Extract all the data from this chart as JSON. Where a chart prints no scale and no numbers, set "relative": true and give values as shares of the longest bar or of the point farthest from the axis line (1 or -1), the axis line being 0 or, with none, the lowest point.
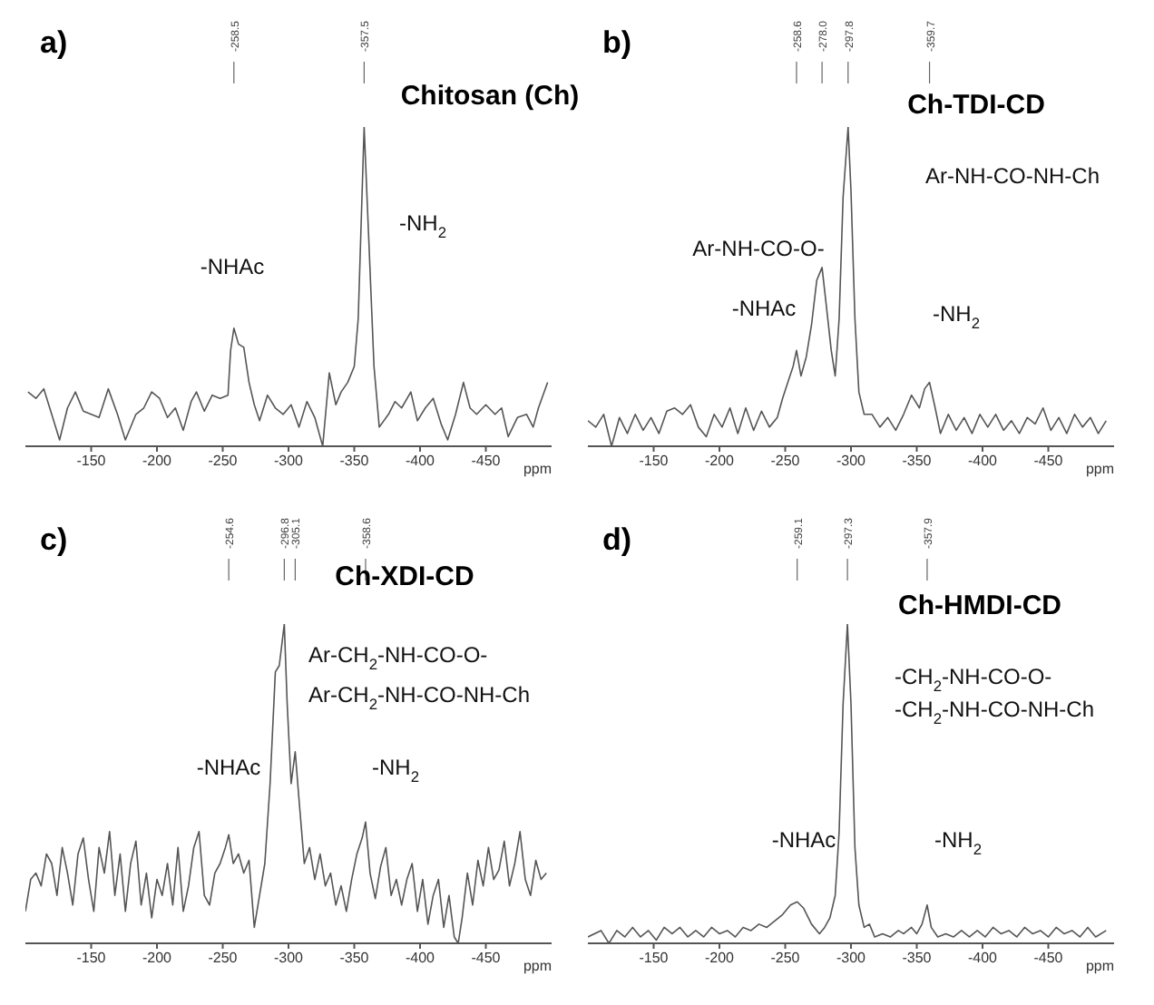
{
  "chart_data": [
    {
      "type": "line",
      "title": "a)",
      "subtitle": "Chitosan (Ch)",
      "xlabel": "ppm",
      "relative": true,
      "xlim": [
        -100,
        -500
      ],
      "xticks": [
        -150,
        -200,
        -250,
        -300,
        -350,
        -400,
        -450
      ],
      "series": [
        {
          "color": "#555555",
          "x": [
            -102,
            -108,
            -114,
            -120,
            -126,
            -132,
            -138,
            -144,
            -150,
            -156,
            -163,
            -170,
            -176,
            -184,
            -190,
            -196,
            -202,
            -208,
            -214,
            -220,
            -226,
            -230,
            -236,
            -242,
            -248,
            -254,
            -256,
            -258.5,
            -262,
            -266,
            -270,
            -274,
            -278,
            -284,
            -290,
            -296,
            -302,
            -308,
            -314,
            -320,
            -326,
            -331,
            -336,
            -340,
            -345,
            -350,
            -353,
            -357.5,
            -362,
            -365,
            -369,
            -376,
            -381,
            -386,
            -393,
            -398,
            -404,
            -410,
            -416,
            -421,
            -427,
            -433,
            -438,
            -443,
            -450,
            -457,
            -462,
            -467,
            -474,
            -481,
            -486,
            -490,
            -497
          ],
          "values": [
            0.17,
            0.15,
            0.18,
            0.1,
            0.02,
            0.12,
            0.17,
            0.11,
            0.1,
            0.09,
            0.18,
            0.1,
            0.02,
            0.1,
            0.12,
            0.17,
            0.15,
            0.09,
            0.12,
            0.05,
            0.14,
            0.17,
            0.11,
            0.16,
            0.15,
            0.16,
            0.3,
            0.37,
            0.32,
            0.31,
            0.2,
            0.13,
            0.08,
            0.16,
            0.12,
            0.1,
            0.13,
            0.06,
            0.14,
            0.09,
            0,
            0.23,
            0.13,
            0.17,
            0.2,
            0.25,
            0.4,
            1.0,
            0.55,
            0.25,
            0.06,
            0.1,
            0.14,
            0.12,
            0.17,
            0.08,
            0.12,
            0.15,
            0.07,
            0.02,
            0.1,
            0.2,
            0.12,
            0.1,
            0.13,
            0.1,
            0.12,
            0.03,
            0.09,
            0.1,
            0.06,
            0.12,
            0.2
          ]
        }
      ],
      "ref_lines": [
        {
          "axis": "x",
          "value": -258.5,
          "label": "-258.5"
        },
        {
          "axis": "x",
          "value": -357.5,
          "label": "-357.5"
        }
      ],
      "annotations": [
        "-NHAc",
        "-NH$_{2}$"
      ]
    },
    {
      "type": "line",
      "title": "b)",
      "subtitle": "Ch-TDI-CD",
      "xlabel": "ppm",
      "relative": true,
      "xlim": [
        -100,
        -500
      ],
      "xticks": [
        -150,
        -200,
        -250,
        -300,
        -350,
        -400,
        -450
      ],
      "series": [
        {
          "color": "#555555",
          "x": [
            -100,
            -106,
            -112,
            -118,
            -124,
            -130,
            -136,
            -142,
            -148,
            -154,
            -160,
            -166,
            -172,
            -178,
            -184,
            -190,
            -196,
            -202,
            -208,
            -214,
            -220,
            -226,
            -232,
            -238,
            -244,
            -248,
            -252,
            -256,
            -258.6,
            -262,
            -266,
            -270,
            -274,
            -278,
            -281,
            -285,
            -288,
            -291,
            -294,
            -297.8,
            -300,
            -303,
            -306,
            -310,
            -316,
            -322,
            -328,
            -334,
            -340,
            -346,
            -352,
            -356,
            -359.7,
            -364,
            -368,
            -374,
            -380,
            -386,
            -392,
            -398,
            -404,
            -410,
            -416,
            -422,
            -428,
            -434,
            -440,
            -446,
            -452,
            -458,
            -464,
            -470,
            -476,
            -482,
            -488,
            -494
          ],
          "values": [
            0.08,
            0.06,
            0.1,
            0,
            0.09,
            0.04,
            0.1,
            0.05,
            0.09,
            0.04,
            0.11,
            0.12,
            0.1,
            0.13,
            0.06,
            0.03,
            0.1,
            0.06,
            0.12,
            0.04,
            0.12,
            0.05,
            0.11,
            0.06,
            0.09,
            0.15,
            0.2,
            0.25,
            0.3,
            0.22,
            0.28,
            0.38,
            0.52,
            0.56,
            0.45,
            0.3,
            0.22,
            0.4,
            0.78,
            1.0,
            0.8,
            0.4,
            0.17,
            0.1,
            0.1,
            0.06,
            0.09,
            0.05,
            0.1,
            0.16,
            0.12,
            0.18,
            0.2,
            0.12,
            0.04,
            0.1,
            0.05,
            0.09,
            0.04,
            0.1,
            0.06,
            0.1,
            0.05,
            0.08,
            0.04,
            0.09,
            0.07,
            0.12,
            0.05,
            0.09,
            0.04,
            0.1,
            0.06,
            0.09,
            0.04,
            0.08
          ]
        }
      ],
      "ref_lines": [
        {
          "axis": "x",
          "value": -258.6,
          "label": "-258.6"
        },
        {
          "axis": "x",
          "value": -278.0,
          "label": "-278.0"
        },
        {
          "axis": "x",
          "value": -297.8,
          "label": "-297.8"
        },
        {
          "axis": "x",
          "value": -359.7,
          "label": "-359.7"
        }
      ],
      "annotations": [
        "-NHAc",
        "Ar-NH-CO-O-",
        "Ar-NH-CO-NH-Ch",
        "-NH$_{2}$"
      ]
    },
    {
      "type": "line",
      "title": "c)",
      "subtitle": "Ch-XDI-CD",
      "xlabel": "ppm",
      "relative": true,
      "xlim": [
        -100,
        -500
      ],
      "xticks": [
        -150,
        -200,
        -250,
        -300,
        -350,
        -400,
        -450
      ],
      "series": [
        {
          "color": "#555555",
          "x": [
            -100,
            -104,
            -108,
            -112,
            -116,
            -120,
            -124,
            -128,
            -132,
            -136,
            -140,
            -144,
            -148,
            -152,
            -156,
            -160,
            -164,
            -168,
            -172,
            -176,
            -180,
            -184,
            -188,
            -192,
            -196,
            -200,
            -204,
            -208,
            -212,
            -216,
            -220,
            -224,
            -228,
            -232,
            -236,
            -240,
            -244,
            -248,
            -252,
            -254.6,
            -258,
            -262,
            -266,
            -270,
            -274,
            -278,
            -282,
            -286,
            -290,
            -293,
            -296.8,
            -299,
            -302,
            -305.1,
            -308,
            -312,
            -316,
            -320,
            -324,
            -328,
            -332,
            -336,
            -340,
            -344,
            -348,
            -352,
            -356,
            -358.6,
            -362,
            -366,
            -370,
            -374,
            -378,
            -382,
            -386,
            -390,
            -394,
            -398,
            -402,
            -406,
            -410,
            -414,
            -418,
            -422,
            -426,
            -429,
            -432,
            -436,
            -440,
            -444,
            -448,
            -452,
            -456,
            -460,
            -464,
            -468,
            -472,
            -476,
            -480,
            -484,
            -488,
            -492,
            -496
          ],
          "values": [
            0.1,
            0.2,
            0.22,
            0.18,
            0.28,
            0.25,
            0.15,
            0.3,
            0.22,
            0.12,
            0.28,
            0.33,
            0.2,
            0.1,
            0.3,
            0.22,
            0.35,
            0.15,
            0.28,
            0.1,
            0.25,
            0.32,
            0.12,
            0.22,
            0.08,
            0.2,
            0.15,
            0.25,
            0.12,
            0.3,
            0.1,
            0.18,
            0.3,
            0.35,
            0.15,
            0.12,
            0.22,
            0.25,
            0.3,
            0.34,
            0.25,
            0.28,
            0.22,
            0.26,
            0.05,
            0.15,
            0.25,
            0.5,
            0.85,
            0.87,
            1.0,
            0.75,
            0.5,
            0.6,
            0.45,
            0.25,
            0.3,
            0.2,
            0.28,
            0.18,
            0.22,
            0.12,
            0.18,
            0.1,
            0.2,
            0.28,
            0.33,
            0.38,
            0.22,
            0.14,
            0.24,
            0.3,
            0.15,
            0.2,
            0.12,
            0.2,
            0.25,
            0.1,
            0.2,
            0.06,
            0.15,
            0.2,
            0.05,
            0.15,
            0.02,
            0,
            0.08,
            0.22,
            0.12,
            0.26,
            0.18,
            0.3,
            0.2,
            0.23,
            0.32,
            0.18,
            0.25,
            0.35,
            0.2,
            0.15,
            0.26,
            0.2,
            0.22
          ]
        }
      ],
      "ref_lines": [
        {
          "axis": "x",
          "value": -254.6,
          "label": "-254.6"
        },
        {
          "axis": "x",
          "value": -296.8,
          "label": "-296.8"
        },
        {
          "axis": "x",
          "value": -305.1,
          "label": "-305.1"
        },
        {
          "axis": "x",
          "value": -358.6,
          "label": "-358.6"
        }
      ],
      "annotations": [
        "-NHAc",
        "Ar-CH$_{2}$-NH-CO-O-",
        "Ar-CH$_{2}$-NH-CO-NH-Ch",
        "-NH$_{2}$"
      ]
    },
    {
      "type": "line",
      "title": "d)",
      "subtitle": "Ch-HMDI-CD",
      "xlabel": "ppm",
      "relative": true,
      "xlim": [
        -100,
        -500
      ],
      "xticks": [
        -150,
        -200,
        -250,
        -300,
        -350,
        -400,
        -450
      ],
      "series": [
        {
          "color": "#555555",
          "x": [
            -100,
            -110,
            -116,
            -122,
            -128,
            -134,
            -140,
            -146,
            -152,
            -158,
            -164,
            -170,
            -176,
            -182,
            -188,
            -194,
            -200,
            -206,
            -212,
            -218,
            -224,
            -230,
            -236,
            -242,
            -248,
            -254,
            -259.1,
            -264,
            -270,
            -276,
            -280,
            -284,
            -288,
            -291,
            -294,
            -297.3,
            -300,
            -303,
            -306,
            -310,
            -314,
            -318,
            -324,
            -330,
            -336,
            -340,
            -346,
            -350,
            -354,
            -357.9,
            -361,
            -366,
            -372,
            -378,
            -384,
            -390,
            -396,
            -402,
            -408,
            -414,
            -420,
            -426,
            -432,
            -438,
            -444,
            -450,
            -456,
            -462,
            -468,
            -474,
            -480,
            -486,
            -494
          ],
          "values": [
            0.02,
            0.04,
            0,
            0.04,
            0.02,
            0.05,
            0.02,
            0.04,
            0.01,
            0.05,
            0.03,
            0.05,
            0.02,
            0.04,
            0.02,
            0.05,
            0.03,
            0.04,
            0.02,
            0.05,
            0.04,
            0.06,
            0.05,
            0.07,
            0.09,
            0.12,
            0.13,
            0.11,
            0.06,
            0.03,
            0.05,
            0.08,
            0.15,
            0.35,
            0.75,
            1.0,
            0.75,
            0.3,
            0.12,
            0.05,
            0.06,
            0.02,
            0.03,
            0.02,
            0.04,
            0.03,
            0.05,
            0.03,
            0.06,
            0.12,
            0.05,
            0.02,
            0.03,
            0.02,
            0.04,
            0.02,
            0.04,
            0.02,
            0.05,
            0.03,
            0.04,
            0.02,
            0.05,
            0.03,
            0.04,
            0.02,
            0.05,
            0.03,
            0.04,
            0.02,
            0.05,
            0.02,
            0.04
          ]
        }
      ],
      "ref_lines": [
        {
          "axis": "x",
          "value": -259.1,
          "label": "-259.1"
        },
        {
          "axis": "x",
          "value": -297.3,
          "label": "-297.3"
        },
        {
          "axis": "x",
          "value": -357.9,
          "label": "-357.9"
        }
      ],
      "annotations": [
        "-NHAc",
        "-NH$_{2}$",
        "-CH$_{2}$-NH-CO-O-",
        "-CH$_{2}$-NH-CO-NH-Ch"
      ]
    }
  ]
}
